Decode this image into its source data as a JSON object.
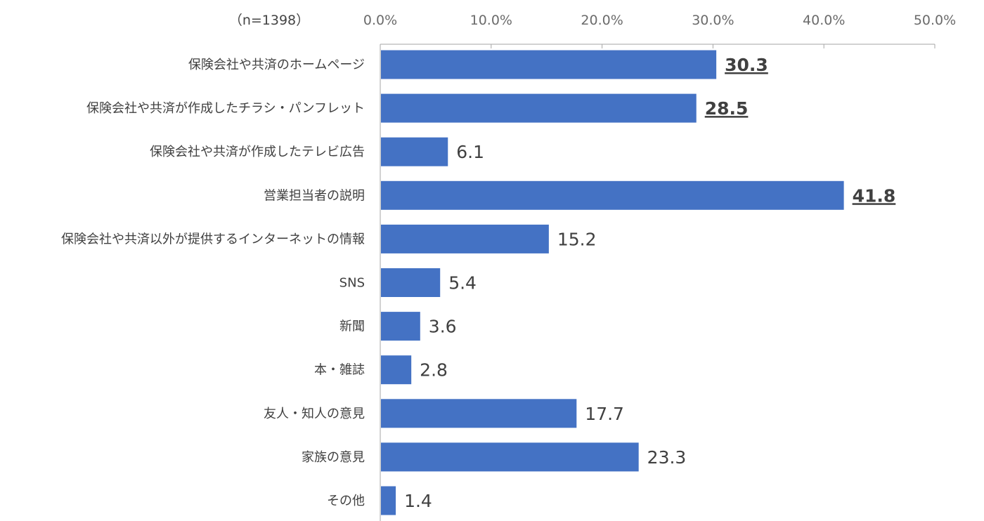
{
  "chart_data": {
    "type": "bar",
    "orientation": "horizontal",
    "sample_note": "（n=1398）",
    "categories": [
      "保険会社や共済のホームページ",
      "保険会社や共済が作成したチラシ・パンフレット",
      "保険会社や共済が作成したテレビ広告",
      "営業担当者の説明",
      "保険会社や共済以外が提供するインターネットの情報",
      "SNS",
      "新聞",
      "本・雑誌",
      "友人・知人の意見",
      "家族の意見",
      "その他"
    ],
    "values": [
      30.3,
      28.5,
      6.1,
      41.8,
      15.2,
      5.4,
      3.6,
      2.8,
      17.7,
      23.3,
      1.4
    ],
    "value_labels": [
      "30.3",
      "28.5",
      "6.1",
      "41.8",
      "15.2",
      "5.4",
      "3.6",
      "2.8",
      "17.7",
      "23.3",
      "1.4"
    ],
    "highlighted": [
      "30.3",
      "28.5",
      "41.8"
    ],
    "x_ticks": [
      0,
      10,
      20,
      30,
      40,
      50
    ],
    "x_tick_labels": [
      "0.0%",
      "10.0%",
      "20.0%",
      "30.0%",
      "40.0%",
      "50.0%"
    ],
    "xlim": [
      0,
      50
    ],
    "axis_position": "top",
    "grid": false,
    "legend": "none",
    "colors": {
      "bar": "#4472C4",
      "axis": "#a6a6a6"
    }
  }
}
